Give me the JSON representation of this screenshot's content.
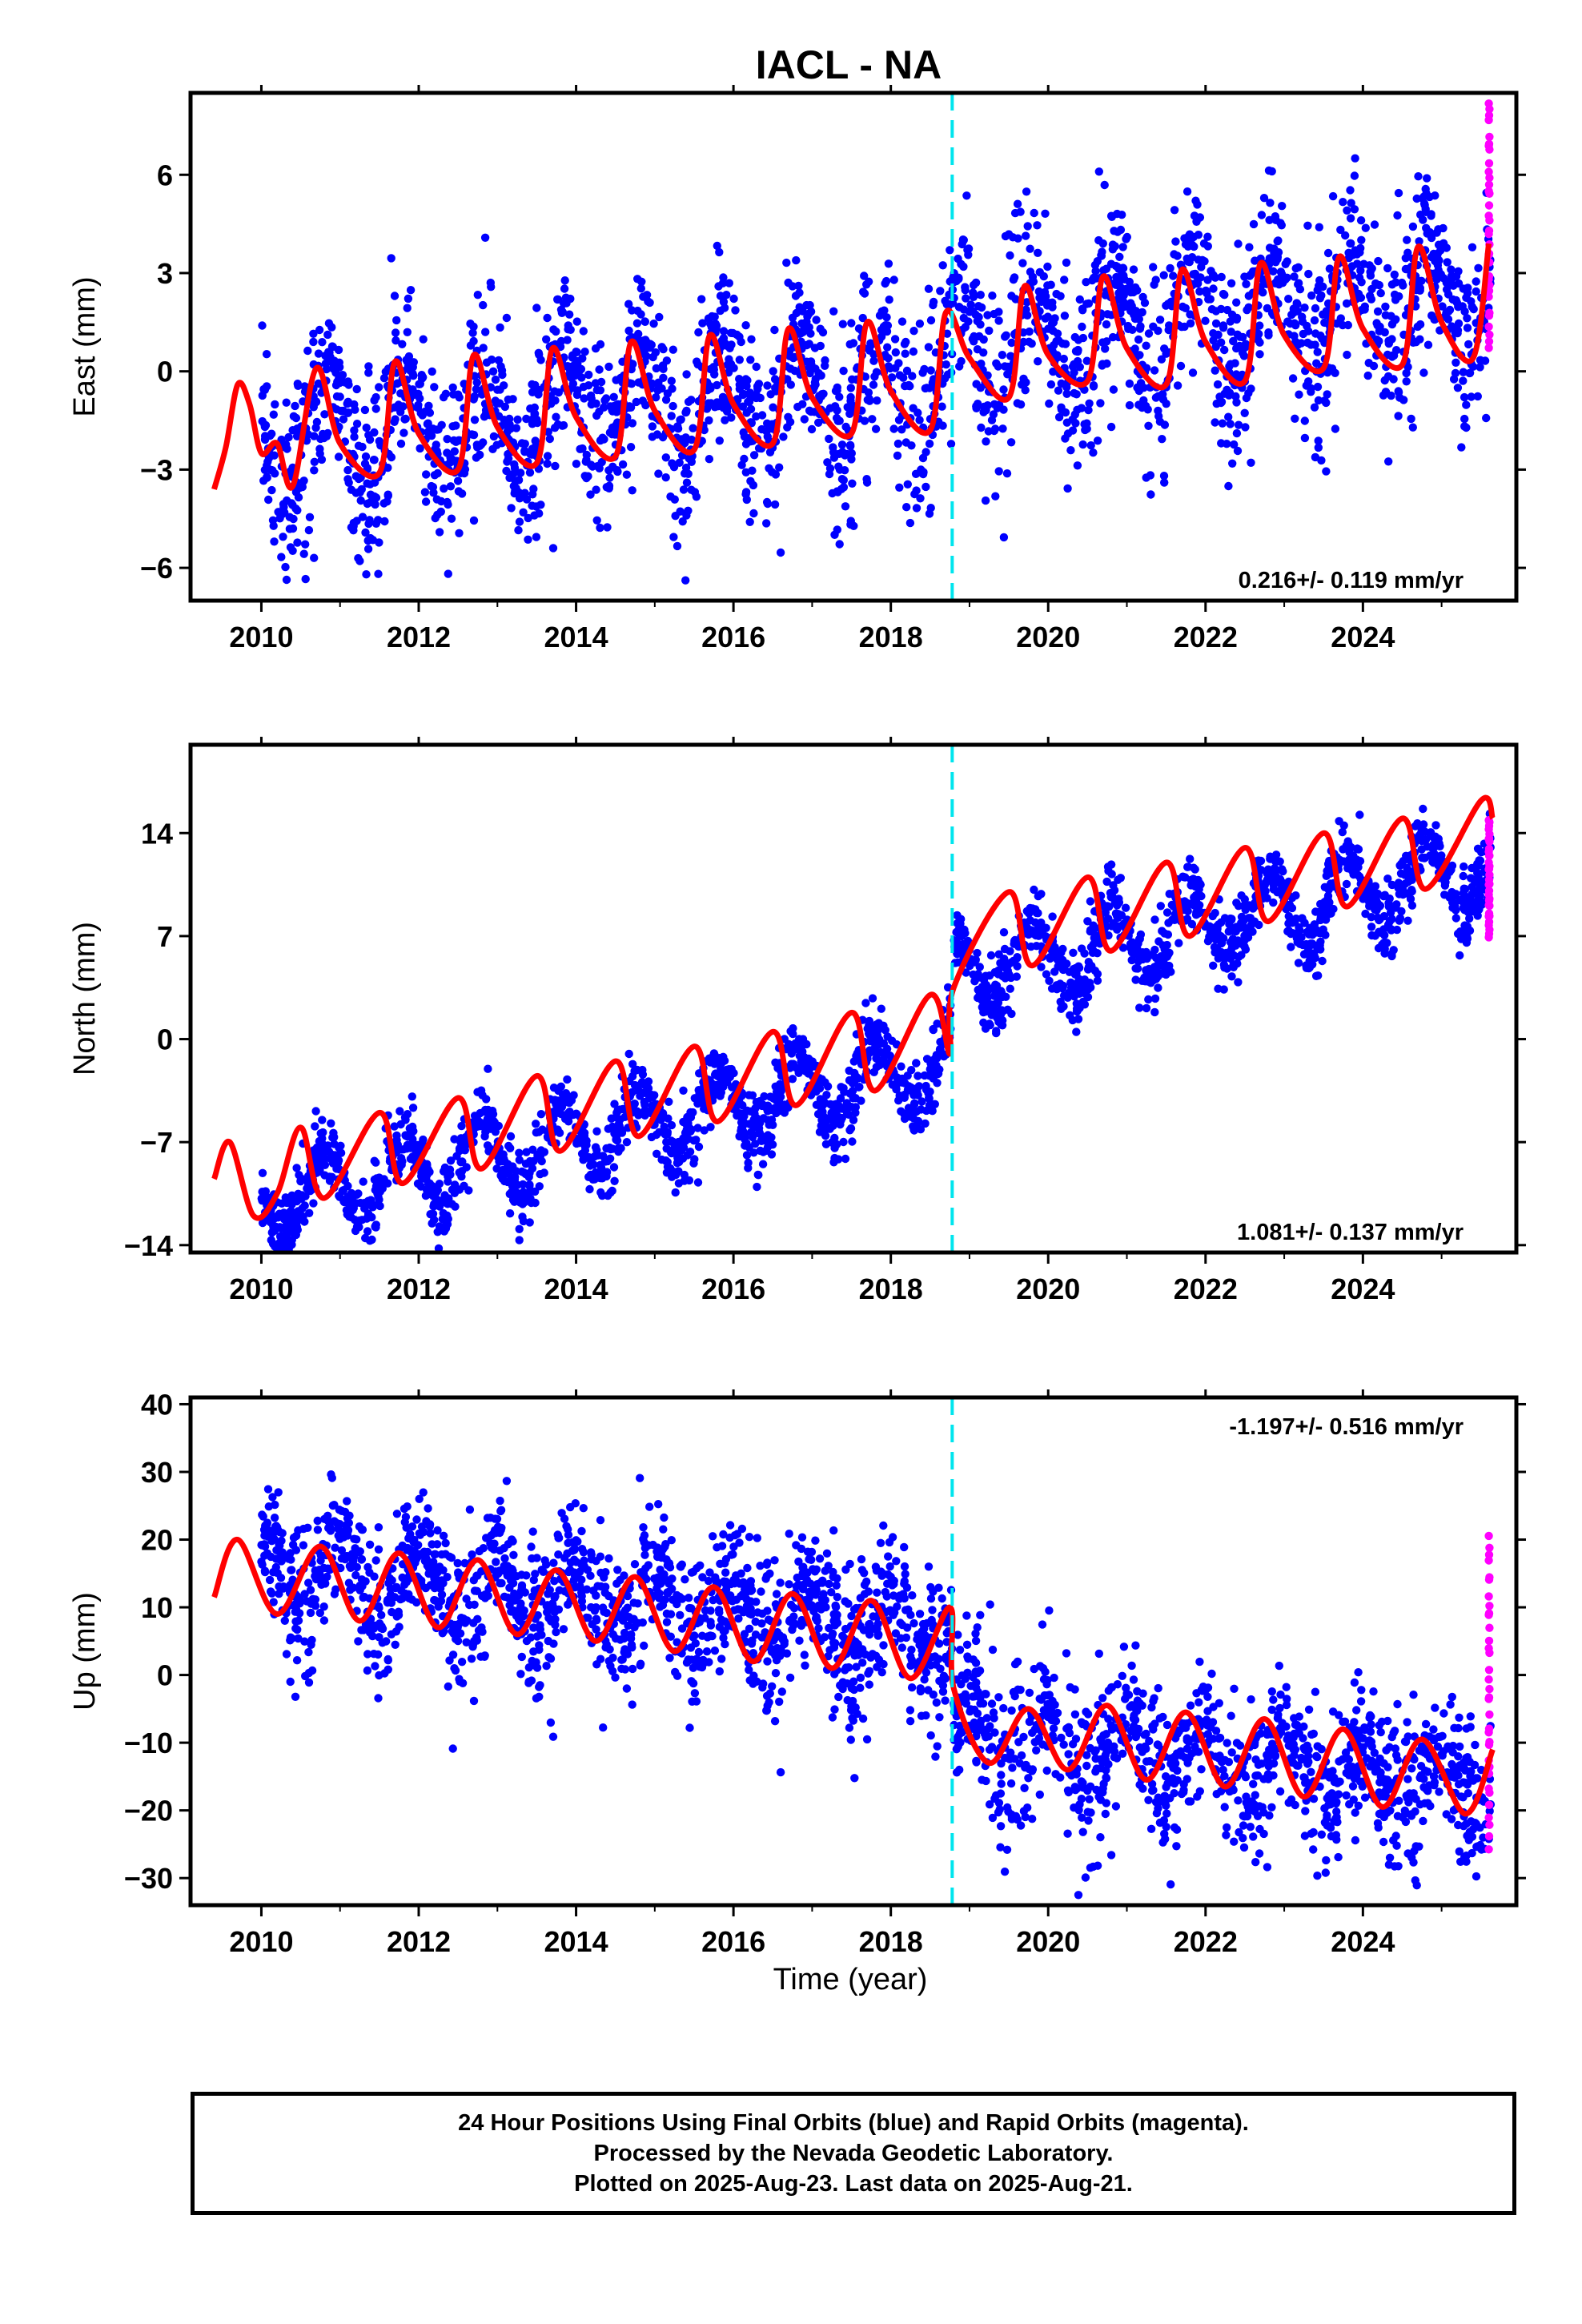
{
  "figure": {
    "title": "IACL - NA",
    "xlabel": "Time (year)",
    "footer": [
      "24 Hour Positions Using Final Orbits (blue) and Rapid Orbits (magenta).",
      "Processed by the Nevada Geodetic Laboratory.",
      "Plotted on 2025-Aug-23. Last data on 2025-Aug-21."
    ]
  },
  "colors": {
    "final_orbits": "#0000ff",
    "rapid_orbits": "#ff00ff",
    "model": "#ff0000",
    "discontinuity": "#00e5ee",
    "frame": "#000000"
  },
  "chart_data": [
    {
      "type": "scatter",
      "panel": "east",
      "ylabel": "East (mm)",
      "xlim": [
        2009.1,
        2025.95
      ],
      "ylim": [
        -7,
        8.5
      ],
      "xticks": [
        2010,
        2012,
        2014,
        2016,
        2018,
        2020,
        2022,
        2024
      ],
      "xtick_labels": [
        "2010",
        "2012",
        "2014",
        "2016",
        "2018",
        "2020",
        "2022",
        "2024"
      ],
      "yticks": [
        -6,
        -3,
        0,
        3,
        6
      ],
      "ytick_labels": [
        "−6",
        "−3",
        "0",
        "3",
        "6"
      ],
      "rate_label": "0.216+/- 0.119 mm/yr",
      "rate_label_position": "bottom-right",
      "discontinuity_year": 2018.78,
      "data_start": 2010.0,
      "data_end": 2025.63,
      "rapid_start": 2025.6,
      "rapid_range": [
        0.8,
        8.2
      ],
      "scatter_spread": 1.3,
      "trend_mm_per_yr": 0.216,
      "model": {
        "t0": 2017.5,
        "offset_before": -0.55,
        "offset_after": 0.55,
        "seasonal_amp": 1.6,
        "seasonal_phase_year": 0.6,
        "series": [
          {
            "x": 2009.4,
            "y": -3.6
          },
          {
            "x": 2009.55,
            "y": -2.3
          },
          {
            "x": 2009.7,
            "y": -0.4
          },
          {
            "x": 2009.85,
            "y": -1.0
          },
          {
            "x": 2010.0,
            "y": -2.5
          },
          {
            "x": 2010.2,
            "y": -2.2
          },
          {
            "x": 2010.4,
            "y": -3.5
          },
          {
            "x": 2010.7,
            "y": 0.1
          },
          {
            "x": 2011.0,
            "y": -2.2
          },
          {
            "x": 2011.5,
            "y": -3.1
          },
          {
            "x": 2011.7,
            "y": 0.3
          },
          {
            "x": 2012.0,
            "y": -1.9
          },
          {
            "x": 2012.5,
            "y": -3.0
          },
          {
            "x": 2012.7,
            "y": 0.5
          },
          {
            "x": 2013.0,
            "y": -1.7
          },
          {
            "x": 2013.5,
            "y": -2.8
          },
          {
            "x": 2013.7,
            "y": 0.7
          },
          {
            "x": 2014.0,
            "y": -1.4
          },
          {
            "x": 2014.5,
            "y": -2.6
          },
          {
            "x": 2014.7,
            "y": 0.9
          },
          {
            "x": 2015.0,
            "y": -1.2
          },
          {
            "x": 2015.5,
            "y": -2.4
          },
          {
            "x": 2015.7,
            "y": 1.1
          },
          {
            "x": 2016.0,
            "y": -1.0
          },
          {
            "x": 2016.5,
            "y": -2.2
          },
          {
            "x": 2016.7,
            "y": 1.3
          },
          {
            "x": 2017.0,
            "y": -0.8
          },
          {
            "x": 2017.5,
            "y": -1.9
          },
          {
            "x": 2017.7,
            "y": 1.5
          },
          {
            "x": 2018.0,
            "y": -0.6
          },
          {
            "x": 2018.5,
            "y": -1.8
          },
          {
            "x": 2018.7,
            "y": 1.8
          },
          {
            "x": 2019.0,
            "y": 0.4
          },
          {
            "x": 2019.5,
            "y": -0.8
          },
          {
            "x": 2019.7,
            "y": 2.6
          },
          {
            "x": 2020.0,
            "y": 0.5
          },
          {
            "x": 2020.5,
            "y": -0.3
          },
          {
            "x": 2020.7,
            "y": 2.9
          },
          {
            "x": 2021.0,
            "y": 0.7
          },
          {
            "x": 2021.5,
            "y": -0.4
          },
          {
            "x": 2021.7,
            "y": 3.1
          },
          {
            "x": 2022.0,
            "y": 0.9
          },
          {
            "x": 2022.5,
            "y": -0.3
          },
          {
            "x": 2022.7,
            "y": 3.3
          },
          {
            "x": 2023.0,
            "y": 1.1
          },
          {
            "x": 2023.5,
            "y": 0.1
          },
          {
            "x": 2023.7,
            "y": 3.5
          },
          {
            "x": 2024.0,
            "y": 1.3
          },
          {
            "x": 2024.5,
            "y": 0.2
          },
          {
            "x": 2024.7,
            "y": 3.8
          },
          {
            "x": 2025.0,
            "y": 1.5
          },
          {
            "x": 2025.4,
            "y": 0.4
          },
          {
            "x": 2025.6,
            "y": 3.9
          }
        ]
      }
    },
    {
      "type": "scatter",
      "panel": "north",
      "ylabel": "North (mm)",
      "xlim": [
        2009.1,
        2025.95
      ],
      "ylim": [
        -14.5,
        20
      ],
      "xticks": [
        2010,
        2012,
        2014,
        2016,
        2018,
        2020,
        2022,
        2024
      ],
      "xtick_labels": [
        "2010",
        "2012",
        "2014",
        "2016",
        "2018",
        "2020",
        "2022",
        "2024"
      ],
      "yticks": [
        -14,
        -7,
        0,
        7,
        14
      ],
      "ytick_labels": [
        "−14",
        "−7",
        "0",
        "7",
        "14"
      ],
      "rate_label": "1.081+/- 0.137 mm/yr",
      "rate_label_position": "bottom-right",
      "discontinuity_year": 2018.78,
      "data_start": 2010.0,
      "data_end": 2025.63,
      "rapid_start": 2025.6,
      "rapid_range": [
        7.0,
        15.0
      ],
      "scatter_spread": 1.1,
      "trend_mm_per_yr": 1.081,
      "model": {
        "t0": 2017.5,
        "offset_before": -3.0,
        "offset_after": 3.0,
        "seasonal_amp": 2.6,
        "seasonal_phase_year": 0.55,
        "series": [
          {
            "x": 2009.4,
            "y": -9.5
          },
          {
            "x": 2009.6,
            "y": -7.0
          },
          {
            "x": 2009.9,
            "y": -12.0
          },
          {
            "x": 2010.2,
            "y": -10.5
          },
          {
            "x": 2010.5,
            "y": -6.0
          },
          {
            "x": 2010.8,
            "y": -10.8
          },
          {
            "x": 2011.5,
            "y": -5.0
          },
          {
            "x": 2011.8,
            "y": -9.8
          },
          {
            "x": 2012.5,
            "y": -4.0
          },
          {
            "x": 2012.8,
            "y": -8.8
          },
          {
            "x": 2013.5,
            "y": -2.5
          },
          {
            "x": 2013.8,
            "y": -7.6
          },
          {
            "x": 2014.5,
            "y": -1.5
          },
          {
            "x": 2014.8,
            "y": -6.6
          },
          {
            "x": 2015.5,
            "y": -0.5
          },
          {
            "x": 2015.8,
            "y": -5.6
          },
          {
            "x": 2016.5,
            "y": 0.5
          },
          {
            "x": 2016.8,
            "y": -4.5
          },
          {
            "x": 2017.5,
            "y": 1.8
          },
          {
            "x": 2017.8,
            "y": -3.5
          },
          {
            "x": 2018.5,
            "y": 3.0
          },
          {
            "x": 2018.75,
            "y": -1.0
          },
          {
            "x": 2018.8,
            "y": 3.5
          },
          {
            "x": 2019.5,
            "y": 10.0
          },
          {
            "x": 2019.8,
            "y": 5.0
          },
          {
            "x": 2020.5,
            "y": 11.0
          },
          {
            "x": 2020.8,
            "y": 6.0
          },
          {
            "x": 2021.5,
            "y": 12.0
          },
          {
            "x": 2021.8,
            "y": 7.0
          },
          {
            "x": 2022.5,
            "y": 13.0
          },
          {
            "x": 2022.8,
            "y": 8.0
          },
          {
            "x": 2023.5,
            "y": 14.0
          },
          {
            "x": 2023.8,
            "y": 9.0
          },
          {
            "x": 2024.5,
            "y": 15.0
          },
          {
            "x": 2024.8,
            "y": 10.2
          },
          {
            "x": 2025.5,
            "y": 16.2
          },
          {
            "x": 2025.65,
            "y": 15.0
          }
        ]
      }
    },
    {
      "type": "scatter",
      "panel": "up",
      "ylabel": "Up (mm)",
      "xlim": [
        2009.1,
        2025.95
      ],
      "ylim": [
        -34,
        41
      ],
      "xticks": [
        2010,
        2012,
        2014,
        2016,
        2018,
        2020,
        2022,
        2024
      ],
      "xtick_labels": [
        "2010",
        "2012",
        "2014",
        "2016",
        "2018",
        "2020",
        "2022",
        "2024"
      ],
      "yticks": [
        -30,
        -20,
        -10,
        0,
        10,
        20,
        30,
        40
      ],
      "ytick_labels": [
        "−30",
        "−20",
        "−10",
        "0",
        "10",
        "20",
        "30",
        "40"
      ],
      "rate_label": "-1.197+/- 0.516 mm/yr",
      "rate_label_position": "top-right",
      "discontinuity_year": 2018.78,
      "data_start": 2010.0,
      "data_end": 2025.63,
      "rapid_start": 2025.6,
      "rapid_range": [
        -25.0,
        20.5
      ],
      "scatter_spread": 5.0,
      "trend_mm_per_yr": -1.197,
      "model": {
        "t0": 2017.5,
        "offset_before": 7.0,
        "offset_after": -7.0,
        "seasonal_amp": 5.0,
        "seasonal_phase_year": 0.75,
        "series": [
          {
            "x": 2009.4,
            "y": 11.5
          },
          {
            "x": 2009.7,
            "y": 20.0
          },
          {
            "x": 2010.2,
            "y": 9.0
          },
          {
            "x": 2010.75,
            "y": 19.0
          },
          {
            "x": 2011.25,
            "y": 8.0
          },
          {
            "x": 2011.75,
            "y": 18.0
          },
          {
            "x": 2012.25,
            "y": 7.0
          },
          {
            "x": 2012.75,
            "y": 17.0
          },
          {
            "x": 2013.25,
            "y": 6.0
          },
          {
            "x": 2013.75,
            "y": 15.5
          },
          {
            "x": 2014.25,
            "y": 5.0
          },
          {
            "x": 2014.75,
            "y": 14.5
          },
          {
            "x": 2015.25,
            "y": 3.5
          },
          {
            "x": 2015.75,
            "y": 13.0
          },
          {
            "x": 2016.25,
            "y": 2.0
          },
          {
            "x": 2016.75,
            "y": 12.0
          },
          {
            "x": 2017.25,
            "y": 1.0
          },
          {
            "x": 2017.75,
            "y": 11.0
          },
          {
            "x": 2018.25,
            "y": -0.5
          },
          {
            "x": 2018.75,
            "y": 10.0
          },
          {
            "x": 2018.8,
            "y": -2.0
          },
          {
            "x": 2019.25,
            "y": -13.0
          },
          {
            "x": 2019.75,
            "y": -5.0
          },
          {
            "x": 2020.25,
            "y": -14.0
          },
          {
            "x": 2020.75,
            "y": -4.5
          },
          {
            "x": 2021.25,
            "y": -15.5
          },
          {
            "x": 2021.75,
            "y": -5.5
          },
          {
            "x": 2022.25,
            "y": -16.5
          },
          {
            "x": 2022.75,
            "y": -6.5
          },
          {
            "x": 2023.25,
            "y": -18.0
          },
          {
            "x": 2023.75,
            "y": -8.0
          },
          {
            "x": 2024.25,
            "y": -19.5
          },
          {
            "x": 2024.75,
            "y": -9.5
          },
          {
            "x": 2025.3,
            "y": -20.5
          },
          {
            "x": 2025.65,
            "y": -11.0
          }
        ]
      }
    }
  ]
}
